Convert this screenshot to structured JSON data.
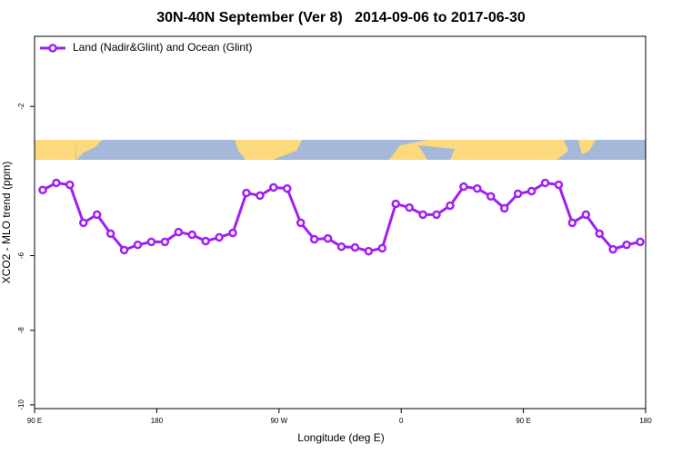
{
  "chart_data": {
    "type": "line",
    "title": "30N-40N September (Ver 8)   2014-09-06 to 2017-06-30",
    "x_label": "Longitude (deg E)",
    "y_label": "XCO2 - MLO trend (ppm)",
    "x": [
      96,
      106,
      116,
      126,
      136,
      146,
      156,
      166,
      176,
      186,
      196,
      206,
      216,
      226,
      236,
      246,
      256,
      266,
      276,
      286,
      296,
      306,
      316,
      326,
      336,
      346,
      356,
      366,
      376,
      386,
      396,
      406,
      416,
      426,
      436,
      446,
      456,
      466,
      476,
      486,
      496,
      506,
      516,
      526,
      536
    ],
    "series": [
      {
        "name": "Land (Nadir&Glint) and Ocean (Glint)",
        "color": "#a020f0",
        "values": [
          -4.24,
          -4.05,
          -4.1,
          -5.12,
          -4.9,
          -5.41,
          -5.85,
          -5.71,
          -5.63,
          -5.63,
          -5.37,
          -5.44,
          -5.61,
          -5.51,
          -5.39,
          -4.32,
          -4.39,
          -4.17,
          -4.2,
          -5.12,
          -5.56,
          -5.54,
          -5.76,
          -5.78,
          -5.88,
          -5.8,
          -4.61,
          -4.71,
          -4.9,
          -4.9,
          -4.66,
          -4.15,
          -4.2,
          -4.41,
          -4.73,
          -4.34,
          -4.27,
          -4.05,
          -4.1,
          -5.12,
          -4.9,
          -5.41,
          -5.83,
          -5.71,
          -5.63
        ]
      }
    ],
    "xlim": [
      90,
      540
    ],
    "xticks": [
      {
        "value": 90,
        "label": "90 E"
      },
      180,
      {
        "value": 270,
        "label": "90 W"
      },
      {
        "value": 360,
        "label": "0"
      },
      {
        "value": 450,
        "label": "90 E"
      },
      {
        "value": 540,
        "label": "180"
      }
    ],
    "ylim": [
      -10.1,
      -0.12
    ],
    "yticks": [
      -10,
      -8,
      -6,
      -2
    ],
    "legend": "top-left"
  }
}
